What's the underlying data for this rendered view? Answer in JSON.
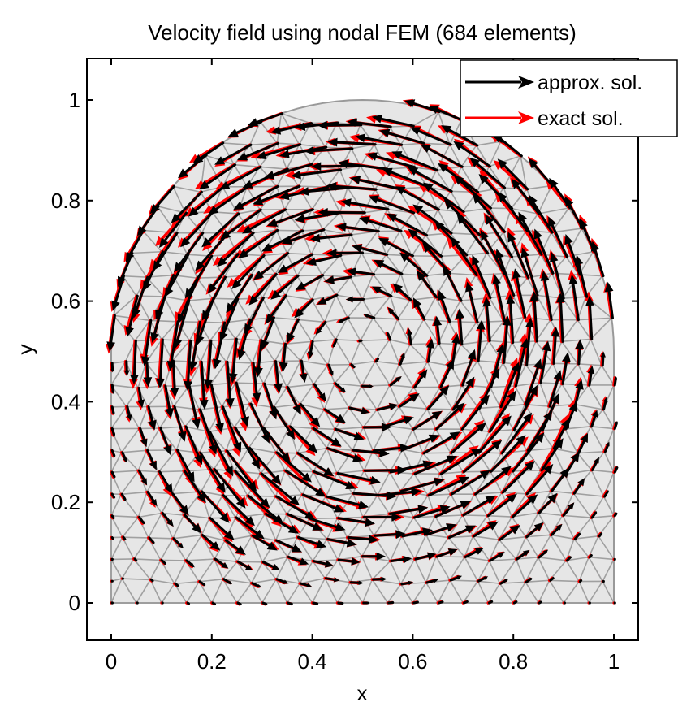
{
  "chart_data": {
    "type": "quiver",
    "title": "Velocity field using nodal FEM (684 elements)",
    "xlabel": "x",
    "ylabel": "y",
    "xlim": [
      -0.05,
      1.05
    ],
    "ylim": [
      -0.075,
      1.08
    ],
    "x_ticks": [
      "0",
      "0.2",
      "0.4",
      "0.6",
      "0.8",
      "1"
    ],
    "y_ticks": [
      "0",
      "0.2",
      "0.4",
      "0.6",
      "0.8",
      "1"
    ],
    "x_tick_values": [
      0,
      0.2,
      0.4,
      0.6,
      0.8,
      1
    ],
    "y_tick_values": [
      0,
      0.2,
      0.4,
      0.6,
      0.8,
      1
    ],
    "grid": false,
    "legend_position": "top-right",
    "domain": {
      "shape": "rectangle [0,1]x[0,0.5] with half-disk of radius 0.5 centered at (0.5,0.5) on top",
      "fill_color": "#e6e6e6",
      "mesh_color": "#999999",
      "element_count": 684
    },
    "field": {
      "vortex_center": [
        0.5,
        0.5
      ],
      "rotation": "counterclockwise",
      "peak_speed_radius": 0.33
    },
    "series": [
      {
        "name": "approx. sol.",
        "color": "#000000"
      },
      {
        "name": "exact sol.",
        "color": "#ff0000"
      }
    ]
  }
}
